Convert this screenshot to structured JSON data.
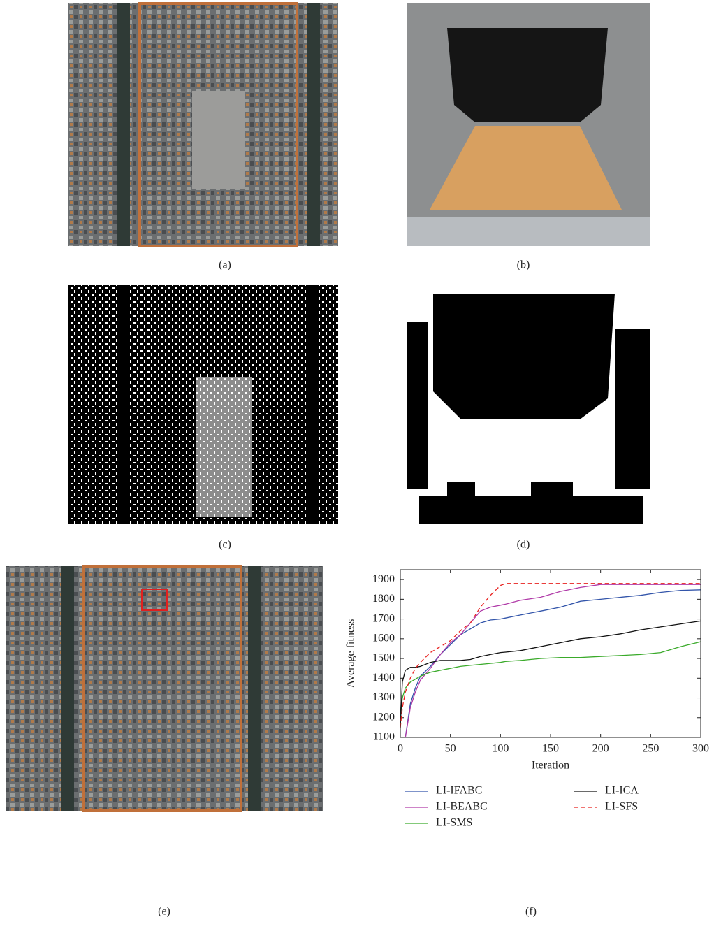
{
  "panels": {
    "a": "(a)",
    "b": "(b)",
    "c": "(c)",
    "d": "(d)",
    "e": "(e)",
    "f": "(f)"
  },
  "chart_data": {
    "type": "line",
    "xlabel": "Iteration",
    "ylabel": "Average fitness",
    "x": [
      0,
      2,
      5,
      10,
      15,
      20,
      30,
      40,
      50,
      60,
      70,
      80,
      90,
      100,
      105,
      120,
      140,
      160,
      180,
      200,
      220,
      240,
      260,
      280,
      300
    ],
    "xlim": [
      0,
      300
    ],
    "xticks": [
      0,
      50,
      100,
      150,
      200,
      250,
      300
    ],
    "ylim": [
      1100,
      1950
    ],
    "yticks": [
      1100,
      1200,
      1300,
      1400,
      1500,
      1600,
      1700,
      1800,
      1900
    ],
    "series": [
      {
        "name": "LI-IFABC",
        "color": "#3355aa",
        "dash": false,
        "values": [
          null,
          null,
          1100,
          1270,
          1350,
          1410,
          1460,
          1520,
          1570,
          1620,
          1650,
          1680,
          1695,
          1700,
          1705,
          1720,
          1740,
          1760,
          1790,
          1800,
          1810,
          1820,
          1835,
          1845,
          1848
        ]
      },
      {
        "name": "LI-BEABC",
        "color": "#b03aa8",
        "dash": false,
        "values": [
          null,
          null,
          1100,
          1250,
          1330,
          1390,
          1450,
          1520,
          1580,
          1620,
          1680,
          1740,
          1760,
          1770,
          1775,
          1795,
          1810,
          1840,
          1860,
          1875,
          1875,
          1875,
          1875,
          1875,
          1875
        ]
      },
      {
        "name": "LI-SMS",
        "color": "#3aaa2a",
        "dash": false,
        "values": [
          1200,
          1300,
          1350,
          1380,
          1395,
          1410,
          1430,
          1440,
          1450,
          1460,
          1465,
          1470,
          1475,
          1480,
          1485,
          1490,
          1500,
          1505,
          1505,
          1510,
          1515,
          1520,
          1530,
          1560,
          1585
        ]
      },
      {
        "name": "LI-ICA",
        "color": "#111111",
        "dash": false,
        "values": [
          1150,
          1380,
          1440,
          1455,
          1455,
          1460,
          1480,
          1490,
          1490,
          1490,
          1495,
          1510,
          1520,
          1530,
          1532,
          1540,
          1560,
          1580,
          1600,
          1610,
          1625,
          1645,
          1660,
          1675,
          1690
        ]
      },
      {
        "name": "LI-SFS",
        "color": "#e8201e",
        "dash": true,
        "values": [
          1150,
          1250,
          1330,
          1400,
          1450,
          1480,
          1530,
          1560,
          1590,
          1640,
          1680,
          1760,
          1820,
          1870,
          1880,
          1880,
          1880,
          1880,
          1880,
          1880,
          1880,
          1880,
          1880,
          1880,
          1880
        ]
      }
    ]
  }
}
